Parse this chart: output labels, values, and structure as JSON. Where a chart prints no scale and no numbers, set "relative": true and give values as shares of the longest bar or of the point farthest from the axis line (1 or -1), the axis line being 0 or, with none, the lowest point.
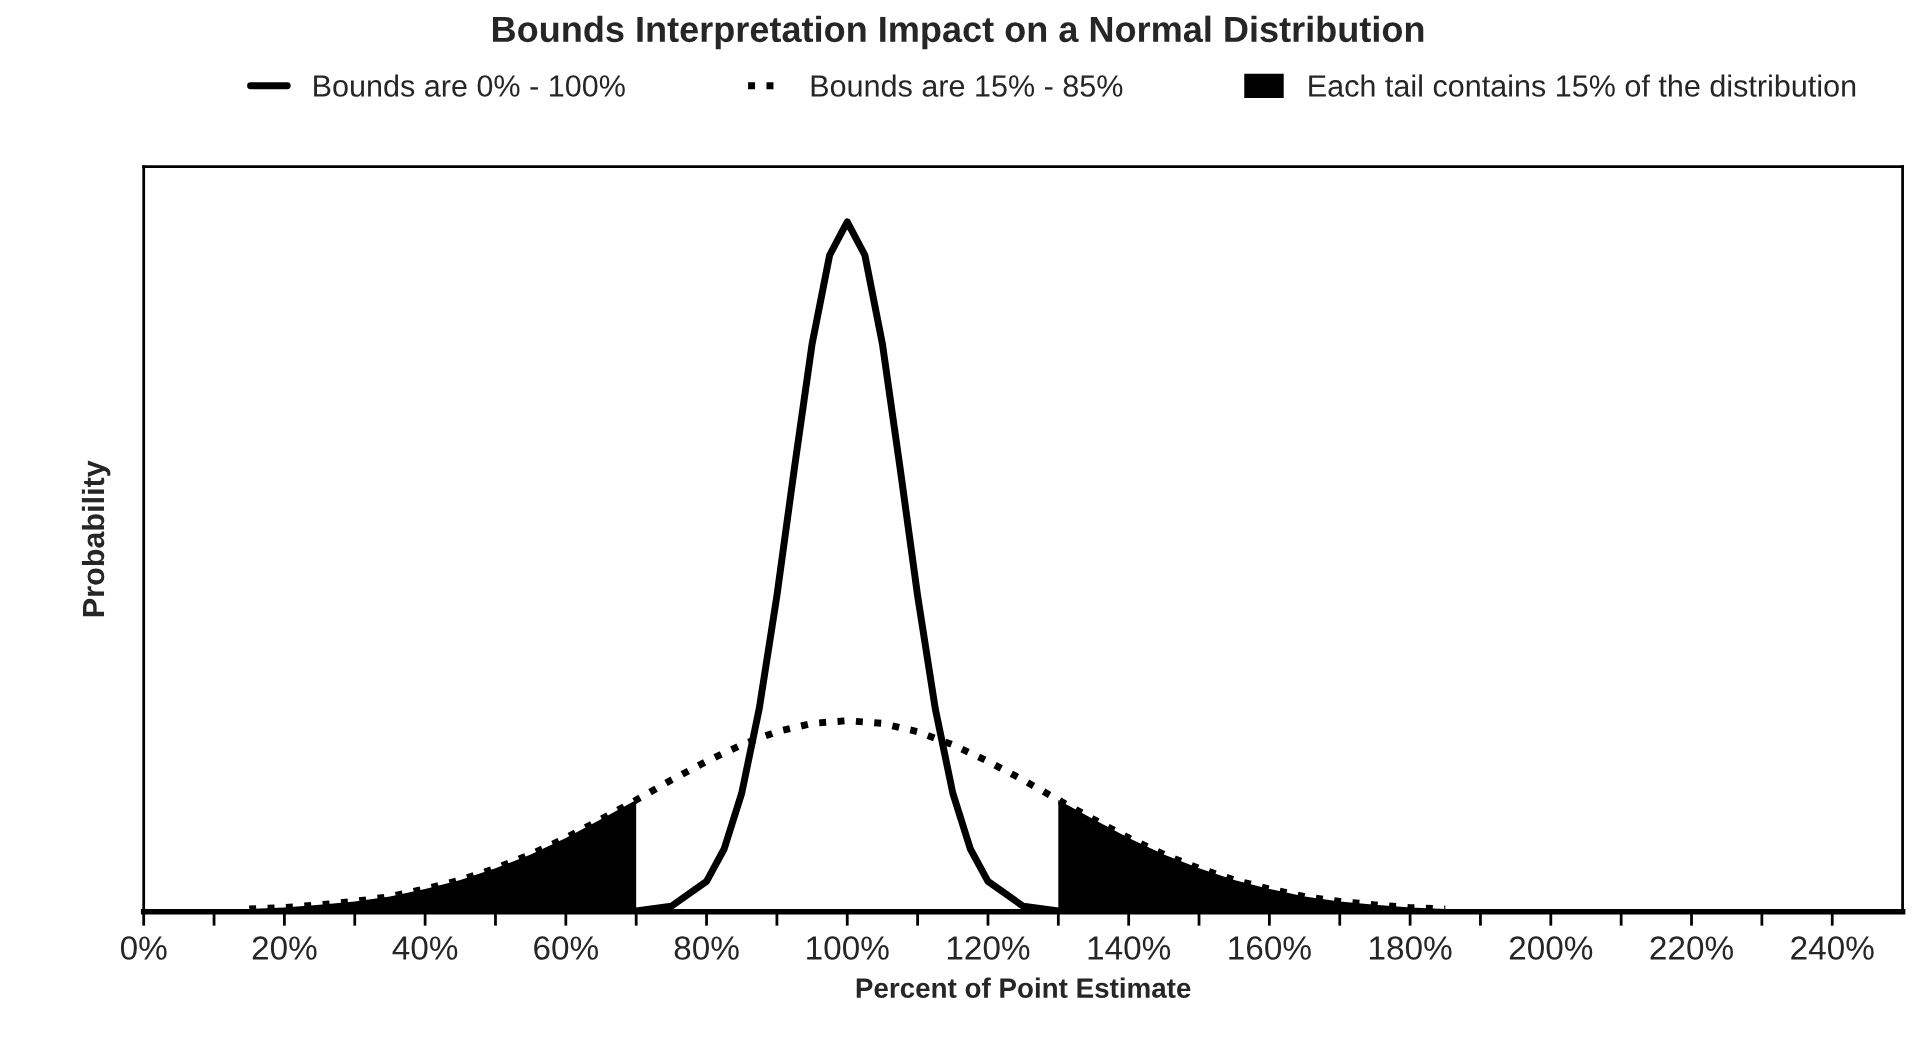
{
  "chart_data": {
    "type": "line",
    "title": "Bounds Interpretation Impact on a Normal Distribution",
    "xlabel": "Percent of Point Estimate",
    "ylabel": "Probability",
    "relative": true,
    "xlim": [
      0,
      250
    ],
    "xticks": [
      {
        "value": 0,
        "label": "0%"
      },
      {
        "value": 10,
        "label": null
      },
      {
        "value": 20,
        "label": "20%"
      },
      {
        "value": 30,
        "label": null
      },
      {
        "value": 40,
        "label": "40%"
      },
      {
        "value": 50,
        "label": null
      },
      {
        "value": 60,
        "label": "60%"
      },
      {
        "value": 70,
        "label": null
      },
      {
        "value": 80,
        "label": "80%"
      },
      {
        "value": 90,
        "label": null
      },
      {
        "value": 100,
        "label": "100%"
      },
      {
        "value": 110,
        "label": null
      },
      {
        "value": 120,
        "label": "120%"
      },
      {
        "value": 130,
        "label": null
      },
      {
        "value": 140,
        "label": "140%"
      },
      {
        "value": 150,
        "label": null
      },
      {
        "value": 160,
        "label": "160%"
      },
      {
        "value": 170,
        "label": null
      },
      {
        "value": 180,
        "label": "180%"
      },
      {
        "value": 190,
        "label": null
      },
      {
        "value": 200,
        "label": "200%"
      },
      {
        "value": 210,
        "label": null
      },
      {
        "value": 220,
        "label": "220%"
      },
      {
        "value": 230,
        "label": null
      },
      {
        "value": 240,
        "label": "240%"
      }
    ],
    "legend": "top",
    "grid": false,
    "series": [
      {
        "name": "Bounds are 0% - 100%",
        "line_style": "solid",
        "color": "#000000",
        "x": [
          70,
          75,
          80,
          82.5,
          85,
          87.5,
          90,
          92.5,
          95,
          97.5,
          100,
          102.5,
          105,
          107.5,
          110,
          112.5,
          115,
          117.5,
          120,
          125,
          130
        ],
        "values": [
          0.001,
          0.008,
          0.044,
          0.091,
          0.172,
          0.295,
          0.458,
          0.644,
          0.823,
          0.952,
          1,
          0.952,
          0.823,
          0.644,
          0.458,
          0.295,
          0.172,
          0.091,
          0.044,
          0.008,
          0.001
        ]
      },
      {
        "name": "Bounds are 15% - 85%",
        "line_style": "dotted",
        "color": "#000000",
        "x": [
          15,
          20,
          25,
          30,
          35,
          40,
          45,
          50,
          55,
          60,
          65,
          70,
          75,
          80,
          85,
          90,
          95,
          100,
          105,
          110,
          115,
          120,
          125,
          130,
          135,
          140,
          145,
          150,
          155,
          160,
          165,
          170,
          175,
          180,
          185
        ],
        "values": [
          0.004,
          0.006,
          0.01,
          0.015,
          0.022,
          0.033,
          0.046,
          0.063,
          0.083,
          0.107,
          0.134,
          0.162,
          0.191,
          0.218,
          0.242,
          0.261,
          0.273,
          0.277,
          0.273,
          0.261,
          0.242,
          0.218,
          0.191,
          0.162,
          0.134,
          0.107,
          0.083,
          0.063,
          0.046,
          0.033,
          0.022,
          0.015,
          0.01,
          0.006,
          0.004
        ]
      },
      {
        "name": "Each tail contains 15% of the distribution",
        "type": "area",
        "color": "#000000",
        "x": [
          15,
          20,
          25,
          30,
          35,
          40,
          45,
          50,
          55,
          60,
          65,
          70,
          100,
          130,
          135,
          140,
          145,
          150,
          155,
          160,
          165,
          170,
          175,
          180,
          185
        ],
        "values": [
          0.004,
          0.006,
          0.01,
          0.015,
          0.022,
          0.033,
          0.046,
          0.063,
          0.083,
          0.107,
          0.134,
          0.162,
          null,
          0.162,
          0.134,
          0.107,
          0.083,
          0.063,
          0.046,
          0.033,
          0.022,
          0.015,
          0.01,
          0.006,
          0.004
        ]
      }
    ]
  }
}
